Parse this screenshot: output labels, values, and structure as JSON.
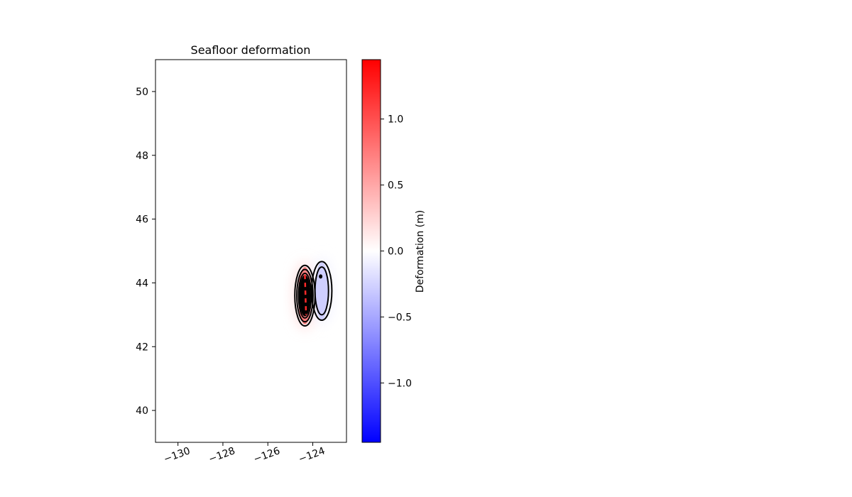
{
  "chart_data": {
    "type": "heatmap",
    "title": "Seafloor deformation",
    "xlabel": "",
    "ylabel": "",
    "xlim": [
      -131,
      -122.5
    ],
    "ylim": [
      39,
      51
    ],
    "x_ticks": [
      -130,
      -128,
      -126,
      -124
    ],
    "x_tick_labels": [
      "−130",
      "−128",
      "−126",
      "−124"
    ],
    "y_ticks": [
      40,
      42,
      44,
      46,
      48,
      50
    ],
    "y_tick_labels": [
      "40",
      "42",
      "44",
      "46",
      "48",
      "50"
    ],
    "grid": false,
    "colorbar": {
      "label": "Deformation (m)",
      "range": [
        -1.45,
        1.45
      ],
      "ticks": [
        -1.0,
        -0.5,
        0.0,
        0.5,
        1.0
      ],
      "tick_labels": [
        "−1.0",
        "−0.5",
        "0.0",
        "0.5",
        "1.0"
      ],
      "colormap": "bwr",
      "colors": {
        "low": "#0000ff",
        "mid": "#ffffff",
        "high": "#ff0000"
      }
    },
    "features": [
      {
        "name": "uplift-lobe",
        "lon": -124.35,
        "lat": 43.6,
        "lon_halfwidth": 0.3,
        "lat_halfwidth": 0.9,
        "peak": 1.4
      },
      {
        "name": "subsidence-lobe",
        "lon": -123.6,
        "lat": 43.75,
        "lon_halfwidth": 0.3,
        "lat_halfwidth": 0.9,
        "peak": -0.5
      }
    ],
    "contours": [
      {
        "lobe": "uplift-lobe",
        "lon": -124.35,
        "lat": 43.6,
        "lon_halfwidth": 0.45,
        "lat_halfwidth": 0.95,
        "color": "#000000"
      },
      {
        "lobe": "uplift-lobe",
        "lon": -124.35,
        "lat": 43.6,
        "lon_halfwidth": 0.36,
        "lat_halfwidth": 0.82,
        "color": "#000000"
      },
      {
        "lobe": "uplift-lobe",
        "lon": -124.35,
        "lat": 43.6,
        "lon_halfwidth": 0.28,
        "lat_halfwidth": 0.7,
        "color": "#000000"
      },
      {
        "lobe": "subsidence-lobe",
        "lon": -123.6,
        "lat": 43.75,
        "lon_halfwidth": 0.45,
        "lat_halfwidth": 0.92,
        "color": "#000000"
      },
      {
        "lobe": "subsidence-lobe",
        "lon": -123.6,
        "lat": 43.75,
        "lon_halfwidth": 0.3,
        "lat_halfwidth": 0.75,
        "color": "#000000"
      }
    ],
    "fault_trace": [
      {
        "lon": -124.35,
        "lat": 44.25
      },
      {
        "lon": -124.3,
        "lat": 43.0
      }
    ],
    "fault_color": "#ff2a2a"
  }
}
